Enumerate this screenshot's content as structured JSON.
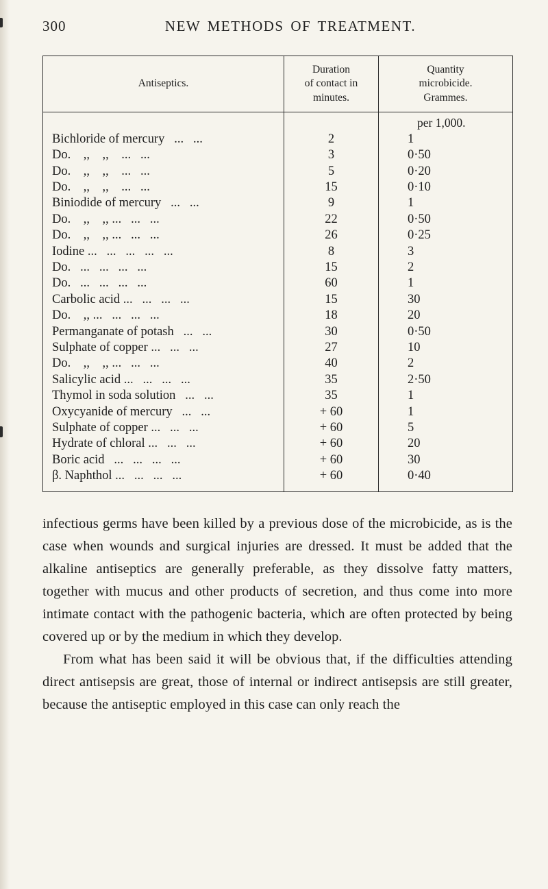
{
  "page": {
    "number": "300",
    "running_title": "NEW METHODS OF TREATMENT."
  },
  "table": {
    "col_headers": {
      "antiseptics": "Antiseptics.",
      "duration": "Duration\nof contact in\nminutes.",
      "quantity": "Quantity\nmicrobicide.\nGrammes."
    },
    "per_note": "per 1,000.",
    "rows": [
      {
        "label": "Bichloride of mercury   ...   ...",
        "duration": "2",
        "quantity": "1"
      },
      {
        "label": "Do.    ,,    ,,    ...   ...",
        "duration": "3",
        "quantity": "0·50"
      },
      {
        "label": "Do.    ,,    ,,    ...   ...",
        "duration": "5",
        "quantity": "0·20"
      },
      {
        "label": "Do.    ,,    ,,    ...   ...",
        "duration": "15",
        "quantity": "0·10"
      },
      {
        "label": "Biniodide of mercury   ...   ...",
        "duration": "9",
        "quantity": "1"
      },
      {
        "label": "Do.    ,,    ,, ...   ...   ...",
        "duration": "22",
        "quantity": "0·50"
      },
      {
        "label": "Do.    ,,    ,, ...   ...   ...",
        "duration": "26",
        "quantity": "0·25"
      },
      {
        "label": "Iodine ...   ...   ...   ...   ...",
        "duration": "8",
        "quantity": "3"
      },
      {
        "label": "Do.   ...   ...   ...   ...",
        "duration": "15",
        "quantity": "2"
      },
      {
        "label": "Do.   ...   ...   ...   ...",
        "duration": "60",
        "quantity": "1"
      },
      {
        "label": "Carbolic acid ...   ...   ...   ...",
        "duration": "15",
        "quantity": "30"
      },
      {
        "label": "Do.    ,, ...   ...   ...   ...",
        "duration": "18",
        "quantity": "20"
      },
      {
        "label": "Permanganate of potash   ...   ...",
        "duration": "30",
        "quantity": "0·50"
      },
      {
        "label": "Sulphate of copper ...   ...   ...",
        "duration": "27",
        "quantity": "10"
      },
      {
        "label": "Do.    ,,    ,, ...   ...   ...",
        "duration": "40",
        "quantity": "2"
      },
      {
        "label": "Salicylic acid ...   ...   ...   ...",
        "duration": "35",
        "quantity": "2·50"
      },
      {
        "label": "Thymol in soda solution   ...   ...",
        "duration": "35",
        "quantity": "1"
      },
      {
        "label": "Oxycyanide of mercury   ...   ...",
        "duration": "+ 60",
        "quantity": "1"
      },
      {
        "label": "Sulphate of copper ...   ...   ...",
        "duration": "+ 60",
        "quantity": "5"
      },
      {
        "label": "Hydrate of chloral ...   ...   ...",
        "duration": "+ 60",
        "quantity": "20"
      },
      {
        "label": "Boric acid   ...   ...   ...   ...",
        "duration": "+ 60",
        "quantity": "30"
      },
      {
        "label": "β. Naphthol ...   ...   ...   ...",
        "duration": "+ 60",
        "quantity": "0·40"
      }
    ]
  },
  "body": {
    "paragraphs": [
      {
        "indent": false,
        "text": "infectious germs have been killed by a previous dose of the microbicide, as is the case when wounds and surgical injuries are dressed. It must be added that the alkaline antiseptics are generally preferable, as they dissolve fatty matters, together with mucus and other products of secretion, and thus come into more intimate contact with the pathogenic bacteria, which are often protected by being covered up or by the medium in which they develop."
      },
      {
        "indent": true,
        "text": "From what has been said it will be obvious that, if the difficulties attending direct antisepsis are great, those of internal or indirect antisepsis are still greater, because the antiseptic employed in this case can only reach the"
      }
    ]
  }
}
